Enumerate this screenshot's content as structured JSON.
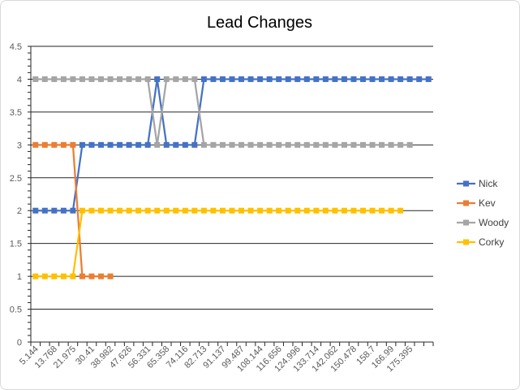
{
  "chart_data": {
    "type": "line",
    "title": "Lead Changes",
    "xlabel": "",
    "ylabel": "",
    "ylim": [
      0,
      4.5
    ],
    "y_ticks": [
      "0",
      "0.5",
      "1",
      "1.5",
      "2",
      "2.5",
      "3",
      "3.5",
      "4",
      "4.5"
    ],
    "x_tick_labels": [
      "5.144",
      "13.768",
      "21.975",
      "30.41",
      "38.982",
      "47.626",
      "56.331",
      "65.358",
      "74.116",
      "82.713",
      "91.137",
      "99.487",
      "108.144",
      "116.656",
      "124.996",
      "133.714",
      "142.062",
      "150.478",
      "158.7",
      "166.99",
      "175.395"
    ],
    "point_count": 43,
    "grid": true,
    "legend_position": "right",
    "series": [
      {
        "name": "Nick",
        "color": "#4472C4",
        "values": [
          2,
          2,
          2,
          2,
          2,
          3,
          3,
          3,
          3,
          3,
          3,
          3,
          3,
          4,
          3,
          3,
          3,
          3,
          4,
          4,
          4,
          4,
          4,
          4,
          4,
          4,
          4,
          4,
          4,
          4,
          4,
          4,
          4,
          4,
          4,
          4,
          4,
          4,
          4,
          4,
          4,
          4,
          4
        ]
      },
      {
        "name": "Kev",
        "color": "#ED7D31",
        "values": [
          3,
          3,
          3,
          3,
          3,
          1,
          1,
          1,
          1
        ]
      },
      {
        "name": "Woody",
        "color": "#A5A5A5",
        "values": [
          4,
          4,
          4,
          4,
          4,
          4,
          4,
          4,
          4,
          4,
          4,
          4,
          4,
          3,
          4,
          4,
          4,
          4,
          3,
          3,
          3,
          3,
          3,
          3,
          3,
          3,
          3,
          3,
          3,
          3,
          3,
          3,
          3,
          3,
          3,
          3,
          3,
          3,
          3,
          3,
          3
        ]
      },
      {
        "name": "Corky",
        "color": "#FFC000",
        "values": [
          1,
          1,
          1,
          1,
          1,
          2,
          2,
          2,
          2,
          2,
          2,
          2,
          2,
          2,
          2,
          2,
          2,
          2,
          2,
          2,
          2,
          2,
          2,
          2,
          2,
          2,
          2,
          2,
          2,
          2,
          2,
          2,
          2,
          2,
          2,
          2,
          2,
          2,
          2,
          2
        ]
      }
    ]
  }
}
